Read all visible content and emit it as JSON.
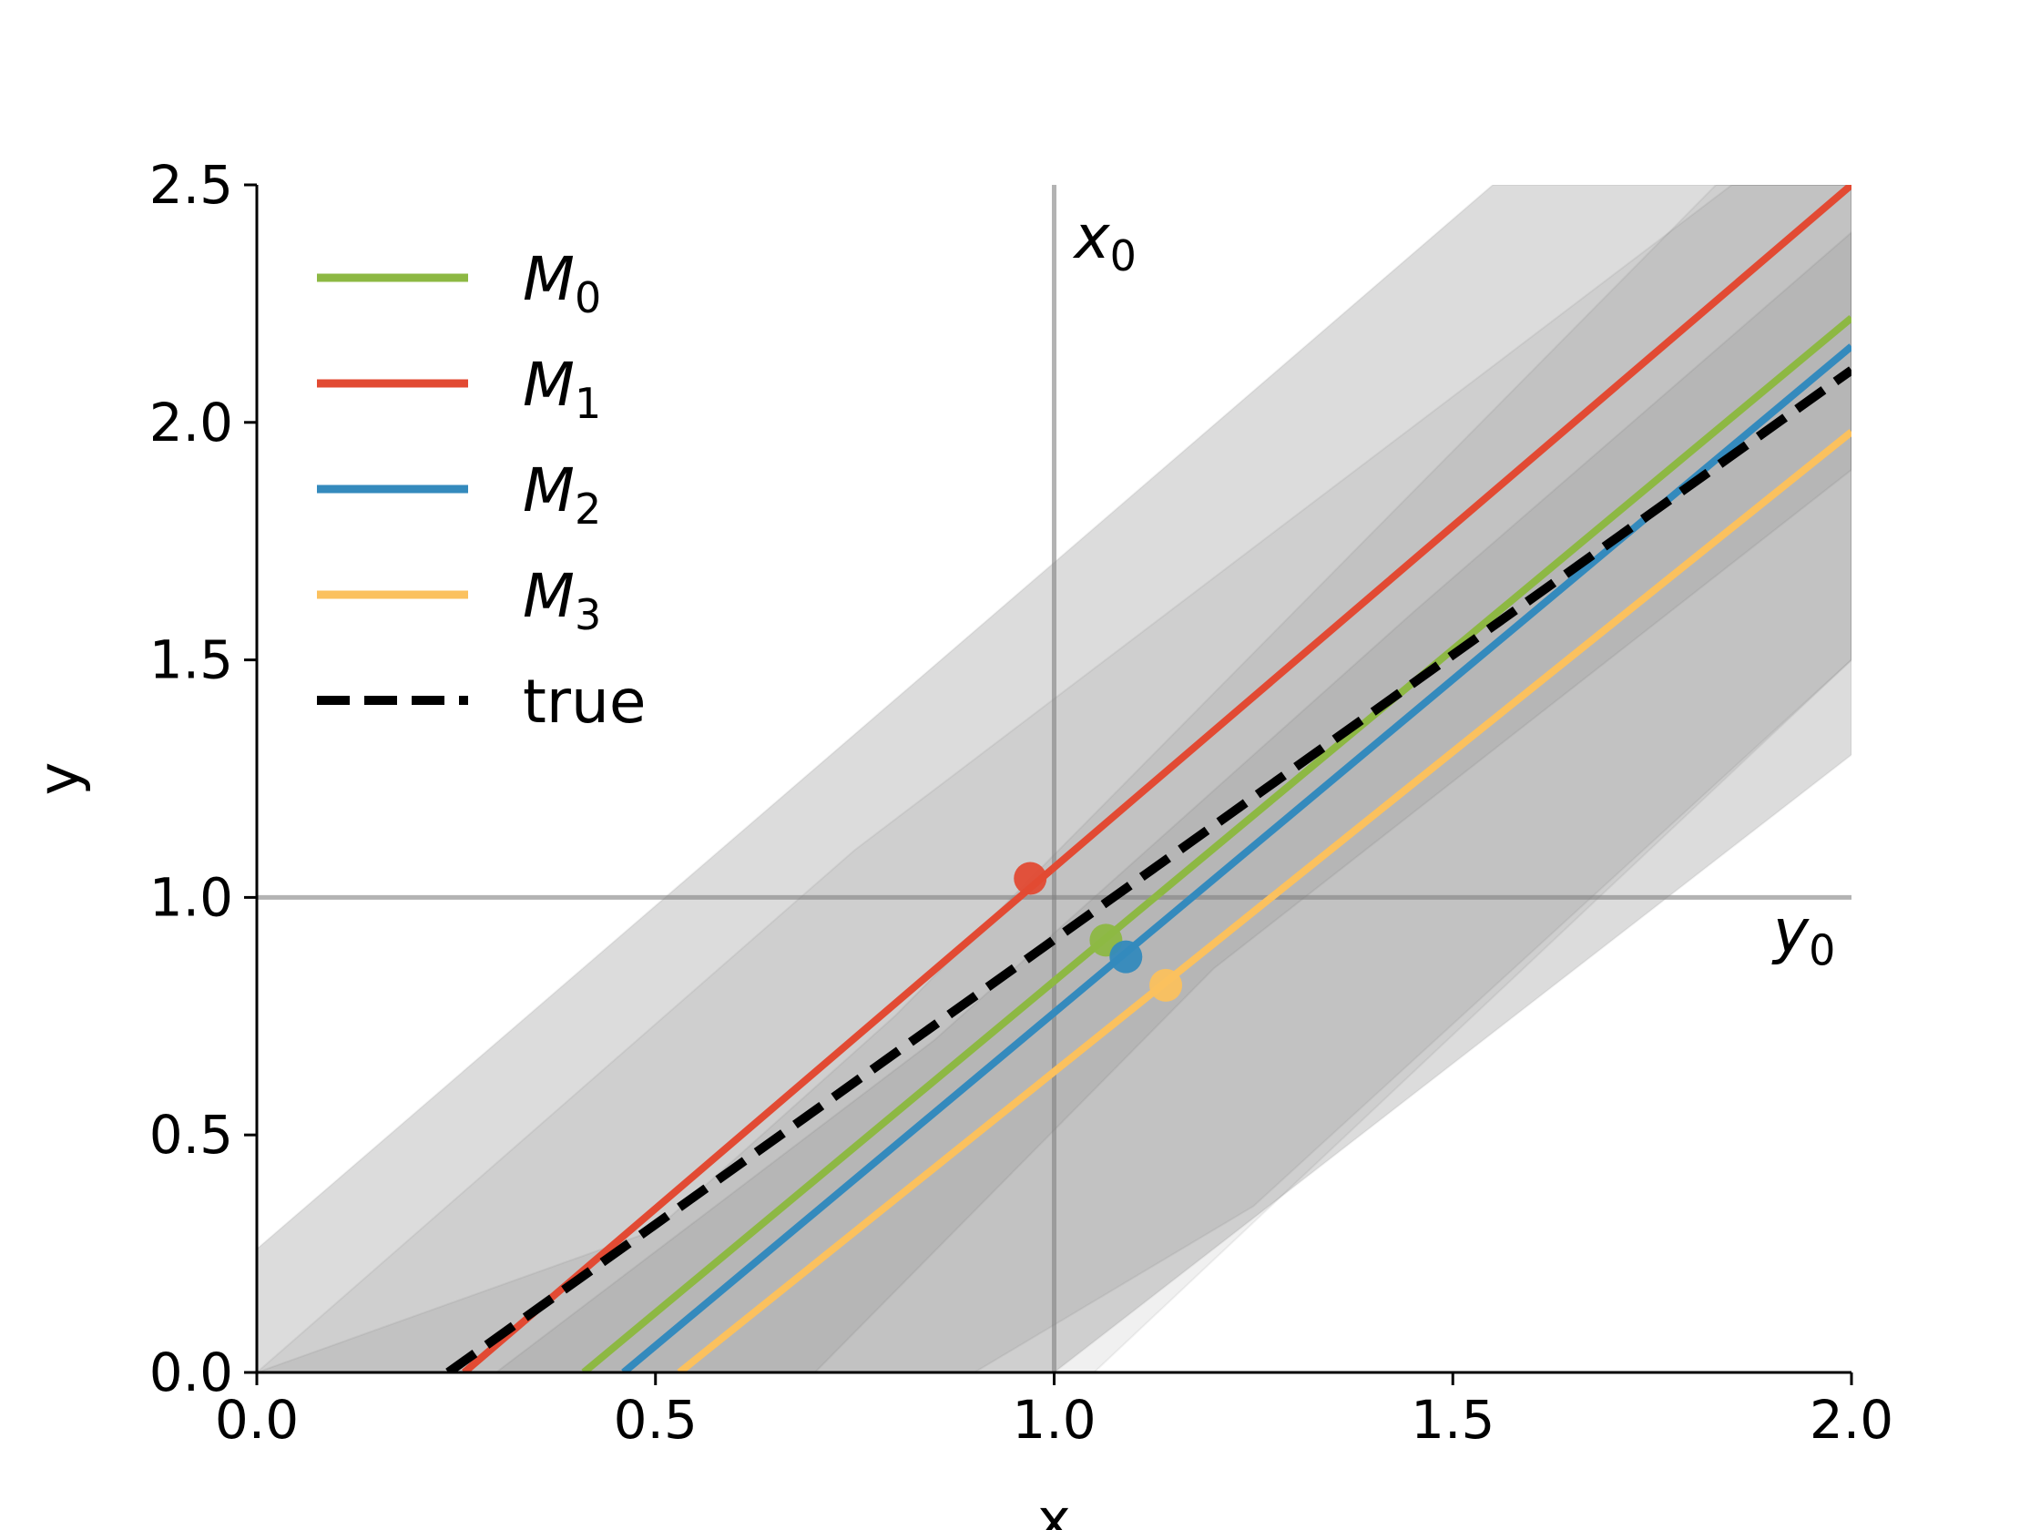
{
  "chart_data": {
    "type": "line",
    "title": "",
    "xlabel": "x",
    "ylabel": "y",
    "xlim": [
      0.0,
      2.0
    ],
    "ylim": [
      0.0,
      2.5
    ],
    "xticks": [
      "0.0",
      "0.5",
      "1.0",
      "1.5",
      "2.0"
    ],
    "yticks": [
      "0.0",
      "0.5",
      "1.0",
      "1.5",
      "2.0",
      "2.5"
    ],
    "xtick_values": [
      0.0,
      0.5,
      1.0,
      1.5,
      2.0
    ],
    "ytick_values": [
      0.0,
      0.5,
      1.0,
      1.5,
      2.0,
      2.5
    ],
    "legend_position": "upper-left",
    "series": [
      {
        "name": "M",
        "sub": "0",
        "color": "#8db843",
        "style": "solid",
        "x": [
          0.41,
          2.0
        ],
        "y": [
          0.0,
          2.22
        ],
        "point": [
          1.065,
          0.91
        ]
      },
      {
        "name": "M",
        "sub": "1",
        "color": "#e24a33",
        "style": "solid",
        "x": [
          0.26,
          2.0
        ],
        "y": [
          0.0,
          2.5
        ],
        "point": [
          0.97,
          1.04
        ]
      },
      {
        "name": "M",
        "sub": "2",
        "color": "#348abd",
        "style": "solid",
        "x": [
          0.46,
          2.0
        ],
        "y": [
          0.0,
          2.16
        ],
        "point": [
          1.09,
          0.875
        ]
      },
      {
        "name": "M",
        "sub": "3",
        "color": "#fbc15e",
        "style": "solid",
        "x": [
          0.53,
          2.0
        ],
        "y": [
          0.0,
          1.98
        ],
        "point": [
          1.14,
          0.815
        ]
      },
      {
        "name": "true",
        "sub": "",
        "color": "#000000",
        "style": "dashed",
        "x": [
          0.24,
          2.0
        ],
        "y": [
          0.0,
          2.11
        ],
        "point": null
      }
    ],
    "bands": [
      {
        "lower": [
          [
            0.0,
            0.0
          ],
          [
            2.0,
            2.0
          ]
        ],
        "upper": [
          [
            0.0,
            0.0
          ],
          [
            2.0,
            2.0
          ]
        ],
        "color": "#000000",
        "opacity": 0.0
      },
      {
        "poly": [
          [
            0.0,
            0.26
          ],
          [
            0.0,
            0.0
          ],
          [
            1.0,
            0.0
          ],
          [
            2.0,
            1.3
          ],
          [
            2.0,
            2.5
          ],
          [
            1.55,
            2.5
          ]
        ],
        "color": "#000000",
        "opacity": 0.07
      },
      {
        "poly": [
          [
            0.0,
            0.0
          ],
          [
            1.05,
            0.0
          ],
          [
            2.0,
            1.5
          ],
          [
            2.0,
            2.5
          ],
          [
            1.85,
            2.5
          ],
          [
            0.75,
            1.1
          ]
        ],
        "color": "#000000",
        "opacity": 0.06
      },
      {
        "poly": [
          [
            0.0,
            0.0
          ],
          [
            0.5,
            0.3
          ],
          [
            0.8,
            0.75
          ],
          [
            1.83,
            2.5
          ],
          [
            2.0,
            2.5
          ],
          [
            2.0,
            1.5
          ],
          [
            1.25,
            0.35
          ],
          [
            0.9,
            0.0
          ]
        ],
        "color": "#000000",
        "opacity": 0.06
      },
      {
        "poly": [
          [
            0.0,
            0.0
          ],
          [
            0.3,
            0.0
          ],
          [
            0.85,
            0.7
          ],
          [
            1.45,
            1.6
          ],
          [
            2.0,
            2.4
          ],
          [
            2.0,
            1.9
          ],
          [
            1.2,
            0.85
          ],
          [
            0.7,
            0.0
          ]
        ],
        "color": "#000000",
        "opacity": 0.06
      }
    ],
    "reference_lines": {
      "x0": {
        "value": 1.0,
        "label": "x",
        "sub": "0"
      },
      "y0": {
        "value": 1.0,
        "label": "y",
        "sub": "0"
      }
    }
  }
}
